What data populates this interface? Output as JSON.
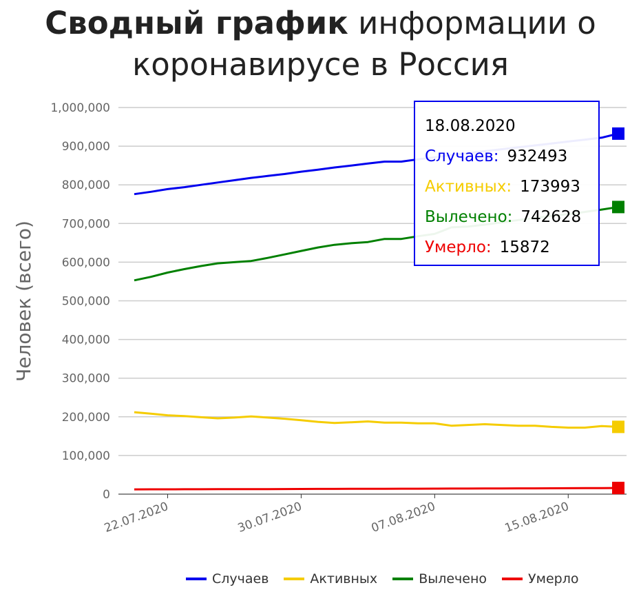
{
  "title": {
    "bold": "Сводный график",
    "rest": " информации о коронавирусе в Россия"
  },
  "chart_data": {
    "type": "line",
    "ylabel": "Человек (всего)",
    "ylim": [
      0,
      1000000
    ],
    "yticks": [
      0,
      100000,
      200000,
      300000,
      400000,
      500000,
      600000,
      700000,
      800000,
      900000,
      1000000
    ],
    "ytick_labels": [
      "0",
      "100,000",
      "200,000",
      "300,000",
      "400,000",
      "500,000",
      "600,000",
      "700,000",
      "800,000",
      "900,000",
      "1,000,000"
    ],
    "x": [
      "20.07.2020",
      "21.07.2020",
      "22.07.2020",
      "23.07.2020",
      "24.07.2020",
      "25.07.2020",
      "26.07.2020",
      "27.07.2020",
      "28.07.2020",
      "29.07.2020",
      "30.07.2020",
      "31.07.2020",
      "01.08.2020",
      "02.08.2020",
      "03.08.2020",
      "04.08.2020",
      "05.08.2020",
      "06.08.2020",
      "07.08.2020",
      "08.08.2020",
      "09.08.2020",
      "10.08.2020",
      "11.08.2020",
      "12.08.2020",
      "13.08.2020",
      "14.08.2020",
      "15.08.2020",
      "16.08.2020",
      "17.08.2020",
      "18.08.2020"
    ],
    "xtick_labels": [
      "22.07.2020",
      "30.07.2020",
      "07.08.2020",
      "15.08.2020"
    ],
    "grid": true,
    "legend_position": "bottom",
    "series": [
      {
        "name": "Случаев",
        "color": "#0000ee",
        "values": [
          776000,
          782000,
          789000,
          794000,
          800000,
          806000,
          812000,
          818000,
          823000,
          828000,
          834000,
          839000,
          845000,
          850000,
          855000,
          860000,
          860000,
          866000,
          871000,
          877000,
          882000,
          887000,
          892000,
          897000,
          902000,
          907000,
          912000,
          917000,
          922000,
          932493
        ]
      },
      {
        "name": "Активных",
        "color": "#f5cc00",
        "values": [
          212000,
          208000,
          204000,
          202000,
          199000,
          196000,
          198000,
          201000,
          198000,
          195000,
          191000,
          187000,
          184000,
          186000,
          188000,
          185000,
          185000,
          183000,
          183000,
          177000,
          179000,
          181000,
          179000,
          177000,
          177000,
          174000,
          172000,
          172000,
          176000,
          173993
        ]
      },
      {
        "name": "Вылечено",
        "color": "#008000",
        "values": [
          553000,
          562000,
          573000,
          582000,
          590000,
          597000,
          600000,
          603000,
          611000,
          620000,
          629000,
          638000,
          645000,
          649000,
          652000,
          660000,
          660000,
          667000,
          673000,
          690000,
          692000,
          697000,
          703000,
          709000,
          714000,
          720000,
          724000,
          730000,
          736000,
          742628
        ]
      },
      {
        "name": "Умерло",
        "color": "#ee0000",
        "values": [
          12300,
          12400,
          12500,
          12600,
          12700,
          12800,
          12900,
          13000,
          13100,
          13200,
          13300,
          13500,
          13600,
          13700,
          13800,
          13900,
          14000,
          14100,
          14200,
          14400,
          14500,
          14600,
          14700,
          14900,
          15000,
          15200,
          15300,
          15500,
          15700,
          15872
        ]
      }
    ]
  },
  "tooltip": {
    "date": "18.08.2020",
    "rows": [
      {
        "label": "Случаев:",
        "value": "932493",
        "color": "#0000ee"
      },
      {
        "label": "Активных:",
        "value": "173993",
        "color": "#f5cc00"
      },
      {
        "label": "Вылечено:",
        "value": "742628",
        "color": "#008000"
      },
      {
        "label": "Умерло:",
        "value": "15872",
        "color": "#ee0000"
      }
    ]
  }
}
